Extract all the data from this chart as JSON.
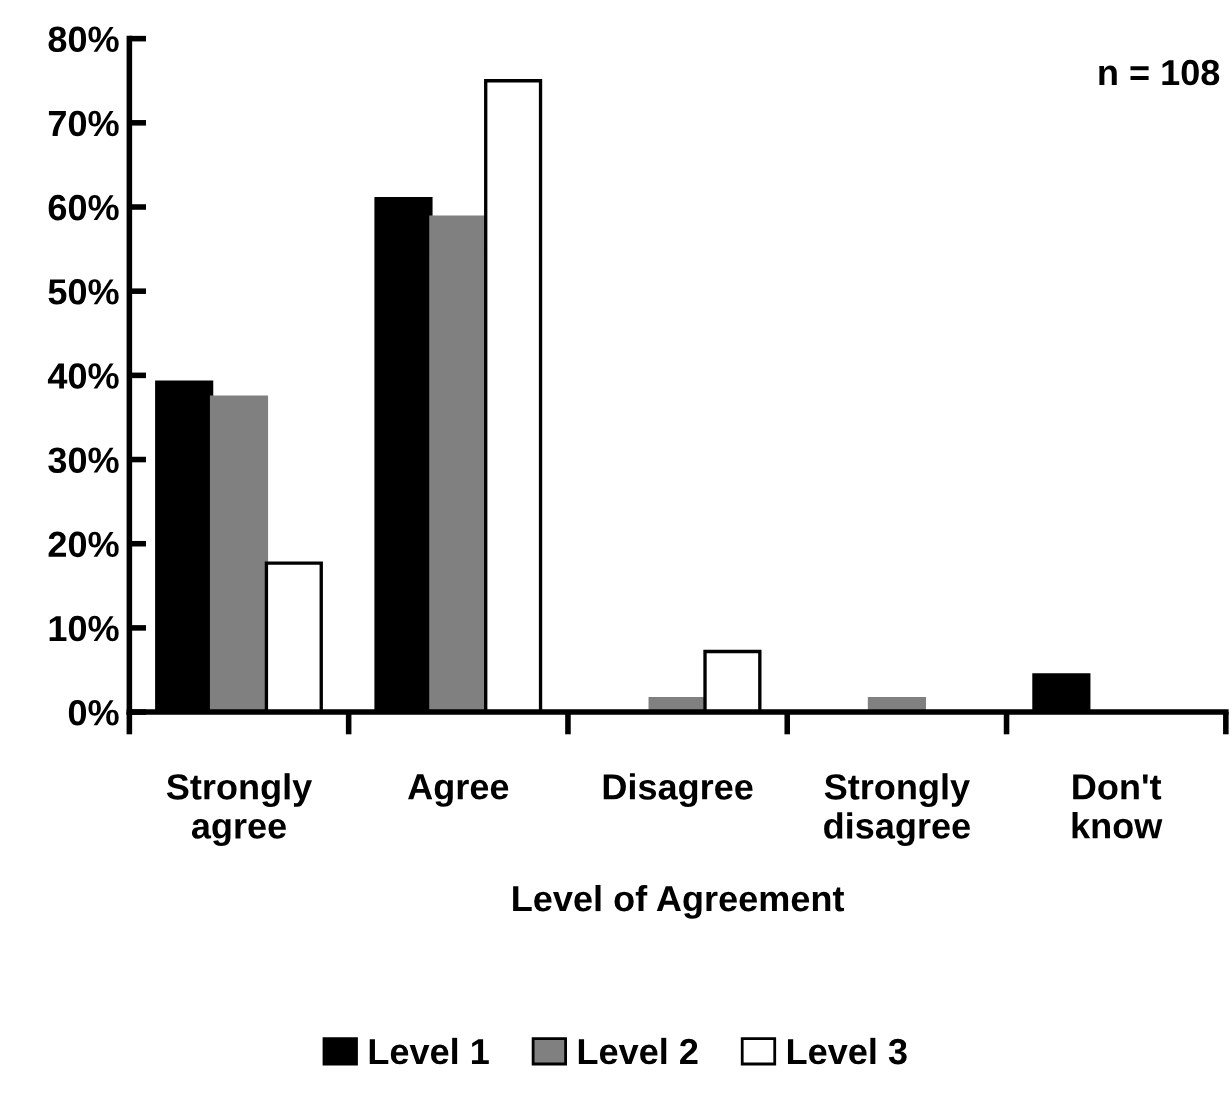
{
  "chart_data": {
    "type": "bar",
    "xlabel": "Level of Agreement",
    "categories": [
      "Strongly\nagree",
      "Agree",
      "Disagree",
      "Strongly\ndisagree",
      "Don't\nknow"
    ],
    "series": [
      {
        "name": "Level 1",
        "color": "#000000",
        "values": [
          39.2,
          61,
          0,
          0,
          4.4
        ]
      },
      {
        "name": "Level 2",
        "color": "#808080",
        "values": [
          37.4,
          58.8,
          1.6,
          1.6,
          0
        ]
      },
      {
        "name": "Level 3",
        "color": "#ffffff",
        "values": [
          17.7,
          75,
          7.2,
          0,
          0
        ]
      }
    ],
    "ylim": [
      0,
      80
    ],
    "yticks": [
      {
        "value": 0,
        "label": "0%"
      },
      {
        "value": 10,
        "label": "10%"
      },
      {
        "value": 20,
        "label": "20%"
      },
      {
        "value": 30,
        "label": "30%"
      },
      {
        "value": 40,
        "label": "40%"
      },
      {
        "value": 50,
        "label": "50%"
      },
      {
        "value": 60,
        "label": "60%"
      },
      {
        "value": 70,
        "label": "70%"
      },
      {
        "value": 80,
        "label": "80%"
      }
    ],
    "annotations": [
      "n = 108"
    ],
    "legend": "bottom",
    "grid": false
  }
}
